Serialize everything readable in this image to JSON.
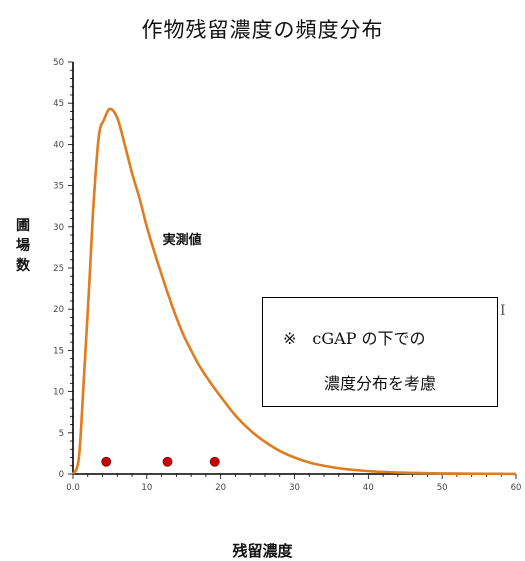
{
  "chart_data": {
    "type": "line",
    "title": "作物残留濃度の頻度分布",
    "xlabel": "残留濃度",
    "ylabel": "圃場数",
    "xlim": [
      0,
      60
    ],
    "ylim": [
      0,
      50
    ],
    "x_tick_labels": [
      "0.0",
      "10",
      "20",
      "30",
      "40",
      "50",
      "60"
    ],
    "y_tick_labels": [
      "0",
      "5",
      "10",
      "15",
      "20",
      "25",
      "30",
      "35",
      "40",
      "45",
      "50"
    ],
    "series": [
      {
        "name": "実測値",
        "color": "#e07b1e",
        "x": [
          0,
          0.8,
          1.5,
          2.2,
          2.8,
          3.5,
          4.2,
          5,
          6,
          7,
          8,
          9,
          10,
          11,
          12,
          13,
          14,
          15,
          16,
          17,
          18,
          19,
          20,
          22,
          24,
          26,
          28,
          30,
          32,
          34,
          36,
          38,
          40,
          42,
          44,
          46,
          48,
          50,
          52,
          54,
          56,
          58,
          60
        ],
        "y": [
          0,
          2,
          12,
          23,
          33,
          41,
          43,
          44.3,
          43.2,
          40,
          36.5,
          33.5,
          30,
          27,
          24.2,
          21.5,
          19,
          16.8,
          15,
          13.3,
          11.9,
          10.6,
          9.4,
          7.1,
          5.3,
          3.9,
          2.8,
          2.0,
          1.4,
          1.0,
          0.7,
          0.5,
          0.35,
          0.25,
          0.18,
          0.13,
          0.1,
          0.07,
          0.05,
          0.04,
          0.03,
          0.02,
          0.01
        ]
      },
      {
        "type": "scatter",
        "color": "#cc0000",
        "x": [
          4.5,
          12.8,
          19.2
        ],
        "y": [
          1,
          1,
          1
        ]
      }
    ],
    "annotations": [
      {
        "text": "実測値",
        "x": 12,
        "y": 28.5
      }
    ],
    "grid": false,
    "legend": "none"
  },
  "note": {
    "line1": "※　cGAP の下での",
    "line2": "濃度分布を考慮"
  },
  "stray_mark": "I"
}
